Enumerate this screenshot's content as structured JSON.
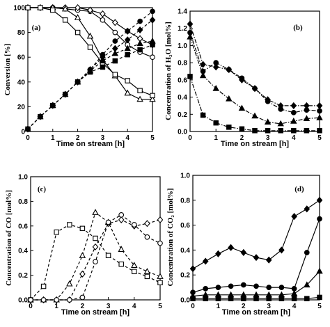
{
  "chart_data": [
    {
      "panel": "(a)",
      "type": "line",
      "xlabel": "Time on stream [h]",
      "ylabel": "Conversion [%]",
      "xlim": [
        0,
        5
      ],
      "ylim": [
        0,
        100
      ],
      "xticks": [
        0,
        1,
        2,
        3,
        4,
        5
      ],
      "yticks": [
        0,
        20,
        40,
        60,
        80,
        100
      ],
      "series": [
        {
          "marker": "open-circle",
          "dash": "solid",
          "x": [
            0,
            0.5,
            1,
            1.5,
            2,
            2.5,
            3,
            3.5,
            4,
            4.5,
            5
          ],
          "y": [
            100,
            100,
            100,
            99,
            98,
            97,
            90,
            80,
            70,
            64,
            60
          ]
        },
        {
          "marker": "open-diamond",
          "dash": "solid",
          "x": [
            0,
            0.5,
            1,
            1.5,
            2,
            2.5,
            3,
            3.5,
            4,
            4.5,
            5
          ],
          "y": [
            100,
            100,
            100,
            100,
            100,
            98,
            95,
            88,
            81,
            75,
            70
          ]
        },
        {
          "marker": "open-triangle",
          "dash": "solid",
          "x": [
            0,
            0.5,
            1,
            1.5,
            2,
            2.5,
            3,
            3.5,
            4,
            4.5,
            5
          ],
          "y": [
            100,
            100,
            100,
            99,
            92,
            77,
            58,
            45,
            31,
            26,
            26
          ]
        },
        {
          "marker": "open-square",
          "dash": "solid",
          "x": [
            0,
            0.5,
            1,
            1.5,
            2,
            2.5,
            3,
            3.5,
            4,
            4.5,
            5
          ],
          "y": [
            100,
            100,
            98,
            90,
            80,
            68,
            55,
            46,
            41,
            33,
            29
          ]
        },
        {
          "marker": "filled-circle",
          "dash": "dashed",
          "x": [
            0,
            0.5,
            1,
            1.5,
            2,
            2.5,
            3,
            3.5,
            4,
            4.5,
            5
          ],
          "y": [
            2,
            12,
            21,
            30,
            40,
            50,
            62,
            73,
            81,
            89,
            97
          ]
        },
        {
          "marker": "filled-diamond",
          "dash": "dashed",
          "x": [
            0,
            0.5,
            1,
            1.5,
            2,
            2.5,
            3,
            3.5,
            4,
            4.5,
            5
          ],
          "y": [
            2,
            12,
            21,
            30,
            40,
            50,
            60,
            67,
            74,
            82,
            90
          ]
        },
        {
          "marker": "filled-triangle",
          "dash": "dashed",
          "x": [
            0,
            0.5,
            1,
            1.5,
            2,
            2.5,
            3,
            3.5,
            4,
            4.5,
            5
          ],
          "y": [
            2,
            12,
            21,
            30,
            40,
            49,
            57,
            63,
            67,
            71,
            73
          ]
        },
        {
          "marker": "filled-square",
          "dash": "dashed",
          "x": [
            0,
            0.5,
            1,
            1.5,
            2,
            2.5,
            3,
            3.5,
            4,
            4.5,
            5
          ],
          "y": [
            2,
            12,
            21,
            30,
            40,
            48,
            52,
            57,
            62,
            66,
            70
          ]
        }
      ]
    },
    {
      "panel": "(b)",
      "type": "line",
      "xlabel": "Time on stream [h]",
      "ylabel": "Concentration of H₂O [mol%]",
      "xlim": [
        0,
        5
      ],
      "ylim": [
        0,
        1.4
      ],
      "xticks": [
        0,
        1,
        2,
        3,
        4,
        5
      ],
      "yticks": [
        0,
        0.2,
        0.4,
        0.6,
        0.8,
        1.0,
        1.2,
        1.4
      ],
      "series": [
        {
          "marker": "filled-diamond",
          "dash": "dash-dot",
          "x": [
            0,
            0.5,
            1,
            1.5,
            2,
            2.5,
            3,
            3.5,
            4,
            4.5,
            5
          ],
          "y": [
            1.25,
            0.78,
            0.75,
            0.72,
            0.6,
            0.5,
            0.37,
            0.3,
            0.3,
            0.3,
            0.3
          ]
        },
        {
          "marker": "filled-circle",
          "dash": "dash-dot",
          "x": [
            0,
            0.5,
            1,
            1.5,
            2,
            2.5,
            3,
            3.5,
            4,
            4.5,
            5
          ],
          "y": [
            1.15,
            0.7,
            0.8,
            0.72,
            0.62,
            0.5,
            0.35,
            0.26,
            0.22,
            0.25,
            0.24
          ]
        },
        {
          "marker": "filled-triangle",
          "dash": "dash-dot",
          "x": [
            0,
            0.5,
            1,
            1.5,
            2,
            2.5,
            3,
            3.5,
            4,
            4.5,
            5
          ],
          "y": [
            1.1,
            0.65,
            0.5,
            0.38,
            0.27,
            0.18,
            0.11,
            0.09,
            0.12,
            0.15,
            0.16
          ]
        },
        {
          "marker": "filled-square",
          "dash": "dash-dot",
          "x": [
            0,
            0.5,
            1,
            1.5,
            2,
            2.5,
            3,
            3.5,
            4,
            4.5,
            5
          ],
          "y": [
            0.64,
            0.19,
            0.1,
            0.05,
            0.03,
            0.01,
            0.01,
            0.01,
            0.01,
            0.01,
            0.01
          ]
        }
      ]
    },
    {
      "panel": "(c)",
      "type": "line",
      "xlabel": "Time on stream [h]",
      "ylabel": "Concentration of CO [mol%]",
      "xlim": [
        0,
        5
      ],
      "ylim": [
        0,
        1.0
      ],
      "xticks": [
        0,
        1,
        2,
        3,
        4,
        5
      ],
      "yticks": [
        0,
        0.2,
        0.4,
        0.6,
        0.8,
        1.0
      ],
      "series": [
        {
          "marker": "open-square",
          "dash": "dashed",
          "x": [
            0,
            0.5,
            1,
            1.5,
            2,
            2.5,
            3,
            3.5,
            4,
            4.5,
            5
          ],
          "y": [
            0,
            0.11,
            0.55,
            0.61,
            0.58,
            0.5,
            0.36,
            0.29,
            0.23,
            0.19,
            0.14
          ]
        },
        {
          "marker": "open-triangle",
          "dash": "dashed",
          "x": [
            0,
            0.5,
            1,
            1.5,
            2,
            2.5,
            3,
            3.5,
            4,
            4.5,
            5
          ],
          "y": [
            0,
            0,
            0,
            0.13,
            0.36,
            0.71,
            0.63,
            0.41,
            0.28,
            0.23,
            0.19
          ]
        },
        {
          "marker": "open-diamond",
          "dash": "dashed",
          "x": [
            0,
            0.5,
            1,
            1.5,
            2,
            2.5,
            3,
            3.5,
            4,
            4.5,
            5
          ],
          "y": [
            0,
            0,
            0,
            0,
            0.21,
            0.43,
            0.62,
            0.65,
            0.6,
            0.62,
            0.65
          ]
        },
        {
          "marker": "open-circle",
          "dash": "dashed",
          "x": [
            0,
            0.5,
            1,
            1.5,
            2,
            2.5,
            3,
            3.5,
            4,
            4.5,
            5
          ],
          "y": [
            0,
            0,
            0,
            0,
            0.02,
            0.31,
            0.63,
            0.69,
            0.61,
            0.51,
            0.46
          ]
        }
      ]
    },
    {
      "panel": "(d)",
      "type": "line",
      "xlabel": "Time on stream [h]",
      "ylabel": "Concentration of CO₂ [mol%]",
      "xlim": [
        0,
        5
      ],
      "ylim": [
        0,
        1.0
      ],
      "xticks": [
        0,
        1,
        2,
        3,
        4,
        5
      ],
      "yticks": [
        0,
        0.2,
        0.4,
        0.6,
        0.8,
        1.0
      ],
      "series": [
        {
          "marker": "filled-diamond",
          "dash": "solid",
          "x": [
            0,
            0.5,
            1,
            1.5,
            2,
            2.5,
            3,
            3.5,
            4,
            4.5,
            5
          ],
          "y": [
            0.25,
            0.31,
            0.37,
            0.42,
            0.38,
            0.34,
            0.32,
            0.4,
            0.67,
            0.73,
            0.8
          ]
        },
        {
          "marker": "filled-circle",
          "dash": "solid",
          "x": [
            0,
            0.5,
            1,
            1.5,
            2,
            2.5,
            3,
            3.5,
            4,
            4.5,
            5
          ],
          "y": [
            0.06,
            0.09,
            0.1,
            0.11,
            0.12,
            0.11,
            0.1,
            0.1,
            0.09,
            0.38,
            0.65
          ]
        },
        {
          "marker": "filled-triangle",
          "dash": "solid",
          "x": [
            0,
            0.5,
            1,
            1.5,
            2,
            2.5,
            3,
            3.5,
            4,
            4.5,
            5
          ],
          "y": [
            0.03,
            0.04,
            0.04,
            0.04,
            0.04,
            0.04,
            0.04,
            0.04,
            0.05,
            0.12,
            0.23
          ]
        },
        {
          "marker": "filled-square",
          "dash": "solid",
          "x": [
            0,
            0.5,
            1,
            1.5,
            2,
            2.5,
            3,
            3.5,
            4,
            4.5,
            5
          ],
          "y": [
            0.01,
            0.01,
            0.01,
            0.01,
            0.01,
            0.01,
            0.01,
            0.01,
            0.01,
            0.01,
            0.02
          ]
        }
      ]
    }
  ]
}
